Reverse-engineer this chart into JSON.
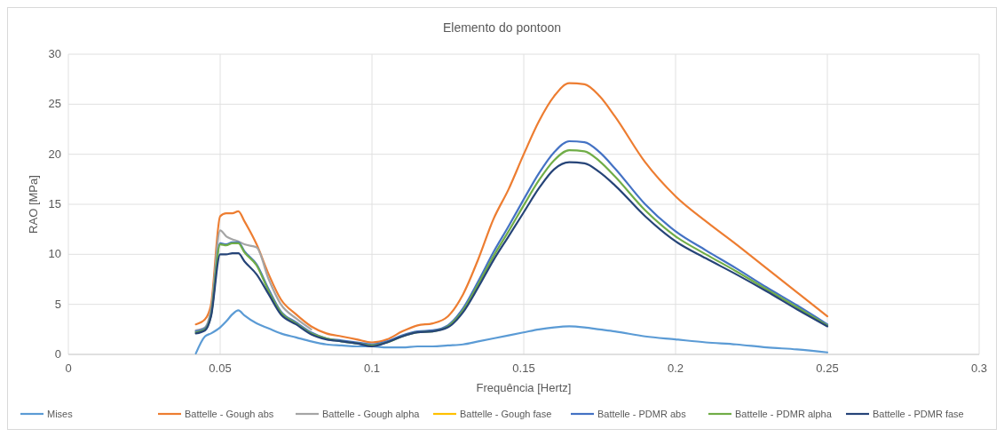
{
  "chart_data": {
    "type": "line",
    "title": "Elemento do pontoon",
    "xlabel": "Frequência [Hertz]",
    "ylabel": "RAO [MPa]",
    "x": [
      0.042,
      0.045,
      0.047,
      0.05,
      0.052,
      0.054,
      0.056,
      0.058,
      0.062,
      0.066,
      0.07,
      0.075,
      0.08,
      0.085,
      0.09,
      0.095,
      0.1,
      0.105,
      0.11,
      0.115,
      0.12,
      0.125,
      0.13,
      0.135,
      0.14,
      0.145,
      0.15,
      0.155,
      0.16,
      0.165,
      0.17,
      0.175,
      0.18,
      0.19,
      0.2,
      0.21,
      0.22,
      0.23,
      0.24,
      0.25
    ],
    "series": [
      {
        "name": "Mises",
        "color": "#5b9bd5",
        "values": [
          0.1,
          1.8,
          2.1,
          2.7,
          3.3,
          4.0,
          4.4,
          3.9,
          3.1,
          2.6,
          2.1,
          1.7,
          1.3,
          1.0,
          0.9,
          0.8,
          0.8,
          0.7,
          0.7,
          0.8,
          0.8,
          0.9,
          1.0,
          1.3,
          1.6,
          1.9,
          2.2,
          2.5,
          2.7,
          2.8,
          2.7,
          2.5,
          2.3,
          1.8,
          1.5,
          1.2,
          1.0,
          0.7,
          0.5,
          0.2
        ]
      },
      {
        "name": "Battelle - Gough abs",
        "color": "#ed7d31",
        "values": [
          3.0,
          3.5,
          5.0,
          13.8,
          14.1,
          14.1,
          14.3,
          13.3,
          11.0,
          8.0,
          5.5,
          4.0,
          2.8,
          2.1,
          1.8,
          1.5,
          1.2,
          1.5,
          2.3,
          2.9,
          3.1,
          3.8,
          6.0,
          9.5,
          13.5,
          16.5,
          20.0,
          23.3,
          25.8,
          27.1,
          27.0,
          25.8,
          23.8,
          19.2,
          15.8,
          13.3,
          11.0,
          8.6,
          6.2,
          3.8
        ]
      },
      {
        "name": "Battelle - Gough alpha",
        "color": "#a5a5a5",
        "values": [
          2.4,
          2.7,
          4.5,
          12.4,
          11.8,
          11.5,
          11.3,
          11.0,
          10.7,
          7.5,
          5.0,
          3.6,
          2.5,
          null,
          null,
          null,
          null,
          null,
          null,
          null,
          null,
          null,
          null,
          null,
          null,
          null,
          null,
          null,
          null,
          null,
          null,
          null,
          null,
          null,
          null,
          null,
          null,
          null,
          null,
          null
        ]
      },
      {
        "name": "Battelle - Gough fase",
        "color": "#ffc000",
        "values": [
          null,
          null,
          null,
          null,
          null,
          null,
          null,
          null,
          null,
          null,
          null,
          null,
          null,
          null,
          null,
          null,
          null,
          null,
          null,
          null,
          null,
          null,
          null,
          null,
          null,
          null,
          null,
          null,
          null,
          null,
          null,
          null,
          null,
          null,
          null,
          null,
          null,
          null,
          null,
          null
        ]
      },
      {
        "name": "Battelle - PDMR abs",
        "color": "#4472c4",
        "values": [
          2.3,
          2.6,
          4.0,
          11.1,
          11.0,
          11.2,
          11.2,
          10.3,
          9.0,
          6.5,
          4.3,
          3.2,
          2.2,
          1.6,
          1.4,
          1.2,
          1.0,
          1.3,
          1.9,
          2.3,
          2.4,
          2.9,
          4.6,
          7.3,
          10.2,
          12.8,
          15.5,
          18.1,
          20.2,
          21.3,
          21.2,
          20.2,
          18.6,
          15.0,
          12.3,
          10.4,
          8.6,
          6.7,
          4.9,
          3.0
        ]
      },
      {
        "name": "Battelle - PDMR alpha",
        "color": "#70ad47",
        "values": [
          2.2,
          2.5,
          3.9,
          11.0,
          10.9,
          11.1,
          11.1,
          10.2,
          8.9,
          6.3,
          4.2,
          3.1,
          2.1,
          1.6,
          1.3,
          1.1,
          0.9,
          1.2,
          1.8,
          2.2,
          2.3,
          2.8,
          4.4,
          7.0,
          9.8,
          12.3,
          14.9,
          17.4,
          19.4,
          20.4,
          20.3,
          19.3,
          17.8,
          14.4,
          11.8,
          10.0,
          8.3,
          6.5,
          4.7,
          2.9
        ]
      },
      {
        "name": "Battelle - PDMR fase",
        "color": "#264478",
        "values": [
          2.1,
          2.4,
          3.8,
          10.0,
          10.0,
          10.1,
          10.1,
          9.3,
          8.0,
          6.0,
          4.0,
          3.0,
          2.0,
          1.5,
          1.3,
          1.1,
          0.8,
          1.2,
          1.8,
          2.2,
          2.3,
          2.7,
          4.2,
          6.7,
          9.4,
          11.8,
          14.2,
          16.6,
          18.5,
          19.2,
          19.1,
          18.2,
          16.9,
          13.8,
          11.3,
          9.6,
          8.0,
          6.3,
          4.5,
          2.8
        ]
      }
    ],
    "xlim": [
      0,
      0.3
    ],
    "xticks": [
      0,
      0.05,
      0.1,
      0.15,
      0.2,
      0.25,
      0.3
    ],
    "ylim": [
      0,
      30
    ],
    "yticks": [
      0,
      5,
      10,
      15,
      20,
      25,
      30
    ],
    "grid": true,
    "legend": "bottom",
    "marker": "none",
    "line_style": "solid"
  }
}
